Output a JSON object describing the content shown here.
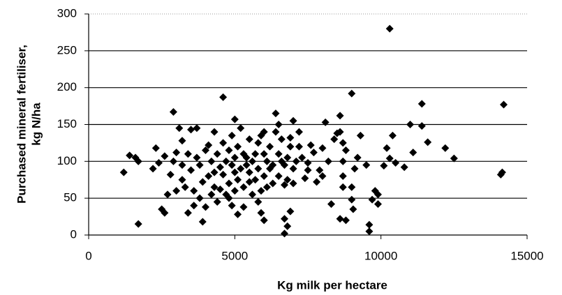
{
  "chart_data": {
    "type": "scatter",
    "x_label": "Kg milk per hectare",
    "y_label": [
      "Purchased mineral fertiliser,",
      "kg N/ha"
    ],
    "color": "#000000",
    "grid": true,
    "xlim": [
      0,
      15000
    ],
    "xticks": [
      0,
      5000,
      10000,
      15000
    ],
    "ylim": [
      0,
      300
    ],
    "yticks": [
      0,
      50,
      100,
      150,
      200,
      250,
      300
    ],
    "x": [
      10300,
      14200,
      14150,
      14100,
      9000,
      4600,
      2900,
      11400,
      1700,
      1200,
      6700,
      9600,
      6800,
      12500,
      12200,
      11600,
      11400,
      11000,
      11100,
      10800,
      10500,
      10400,
      10200,
      10300,
      10100,
      9700,
      9800,
      9900,
      9900,
      9600,
      9500,
      9300,
      9200,
      9100,
      9000,
      9000,
      9050,
      8800,
      8700,
      8700,
      8600,
      8500,
      8600,
      8400,
      8300,
      8700,
      8700,
      8800,
      8600,
      8200,
      8100,
      8000,
      8000,
      7900,
      7800,
      7700,
      7600,
      7500,
      7500,
      7400,
      7300,
      7200,
      7200,
      7100,
      7000,
      7000,
      7000,
      6900,
      6900,
      6900,
      6800,
      6800,
      6700,
      6700,
      6700,
      6600,
      6600,
      6500,
      6500,
      6500,
      6400,
      6400,
      6300,
      6300,
      6200,
      6200,
      6100,
      6100,
      6000,
      6000,
      6000,
      6000,
      5900,
      5900,
      5900,
      5800,
      5800,
      5800,
      5700,
      5700,
      5600,
      5600,
      5500,
      5500,
      5400,
      5400,
      5300,
      5300,
      5300,
      5200,
      5200,
      5100,
      5100,
      5100,
      5000,
      5000,
      5000,
      5000,
      4900,
      4900,
      4900,
      4800,
      4800,
      4700,
      4700,
      4600,
      4600,
      4500,
      4500,
      4400,
      4400,
      4300,
      4300,
      4200,
      4200,
      4100,
      4100,
      4000,
      4000,
      3900,
      3900,
      3800,
      3800,
      3700,
      3700,
      3600,
      3500,
      3500,
      3400,
      3400,
      3300,
      3200,
      3200,
      3100,
      3000,
      3000,
      2900,
      2800,
      2600,
      2600,
      2500,
      2400,
      2300,
      2200,
      1700,
      1600,
      1400,
      2700,
      3200,
      3600,
      4300,
      4800,
      5500
    ],
    "values": [
      280,
      177,
      85,
      82,
      192,
      187,
      167,
      178,
      15,
      85,
      2,
      5,
      12,
      104,
      118,
      126,
      148,
      150,
      112,
      92,
      98,
      135,
      118,
      104,
      94,
      48,
      60,
      55,
      42,
      14,
      95,
      135,
      105,
      90,
      65,
      48,
      35,
      115,
      100,
      125,
      140,
      138,
      162,
      130,
      42,
      65,
      80,
      20,
      22,
      100,
      153,
      118,
      80,
      88,
      72,
      112,
      122,
      98,
      88,
      77,
      105,
      120,
      140,
      100,
      90,
      70,
      155,
      120,
      132,
      32,
      105,
      75,
      95,
      68,
      22,
      130,
      100,
      80,
      110,
      150,
      165,
      140,
      95,
      70,
      120,
      90,
      65,
      100,
      140,
      110,
      80,
      20,
      135,
      60,
      30,
      125,
      90,
      45,
      110,
      75,
      100,
      55,
      85,
      130,
      105,
      95,
      110,
      65,
      38,
      145,
      90,
      120,
      75,
      28,
      157,
      105,
      85,
      60,
      135,
      95,
      40,
      115,
      70,
      100,
      55,
      125,
      82,
      92,
      62,
      110,
      45,
      140,
      85,
      100,
      55,
      122,
      80,
      115,
      38,
      18,
      72,
      95,
      50,
      145,
      105,
      60,
      143,
      88,
      110,
      30,
      65,
      128,
      95,
      145,
      112,
      60,
      100,
      82,
      107,
      30,
      35,
      98,
      118,
      90,
      100,
      105,
      108,
      55,
      75,
      40,
      65,
      50,
      72
    ]
  }
}
